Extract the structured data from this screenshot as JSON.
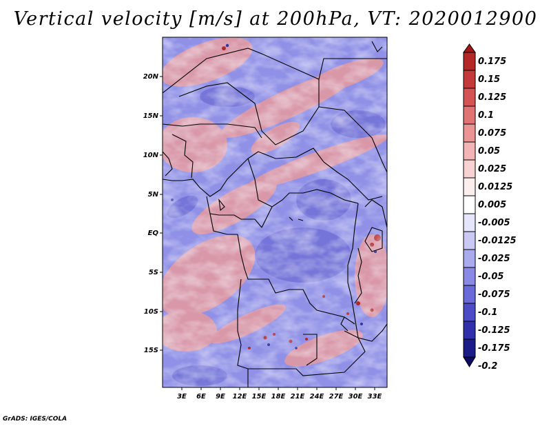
{
  "title": "Vertical velocity [m/s] at 200hPa, VT: 2020012900",
  "footer": "GrADS: IGES/COLA",
  "map": {
    "lat_range": [
      -20,
      25
    ],
    "lon_range": [
      0,
      35
    ],
    "lat_ticks": [
      "20N",
      "15N",
      "10N",
      "5N",
      "EQ",
      "5S",
      "10S",
      "15S"
    ],
    "lon_ticks": [
      "3E",
      "6E",
      "9E",
      "12E",
      "15E",
      "18E",
      "21E",
      "24E",
      "27E",
      "30E",
      "33E"
    ]
  },
  "colorbar": {
    "levels": [
      "0.175",
      "0.15",
      "0.125",
      "0.1",
      "0.075",
      "0.05",
      "0.025",
      "0.0125",
      "0.005",
      "-0.005",
      "-0.0125",
      "-0.025",
      "-0.05",
      "-0.075",
      "-0.1",
      "-0.125",
      "-0.175",
      "-0.2"
    ],
    "colors": [
      "#a01818",
      "#b42828",
      "#c43a3a",
      "#d45454",
      "#e07474",
      "#ea9494",
      "#f2b4b4",
      "#f8d2d2",
      "#fdeeee",
      "#ffffff",
      "#e6e6fb",
      "#c9c9f4",
      "#aaaaee",
      "#8a8ae6",
      "#6a6ad8",
      "#4c4cc6",
      "#3030aa",
      "#1c1c88",
      "#0c0c66"
    ]
  }
}
